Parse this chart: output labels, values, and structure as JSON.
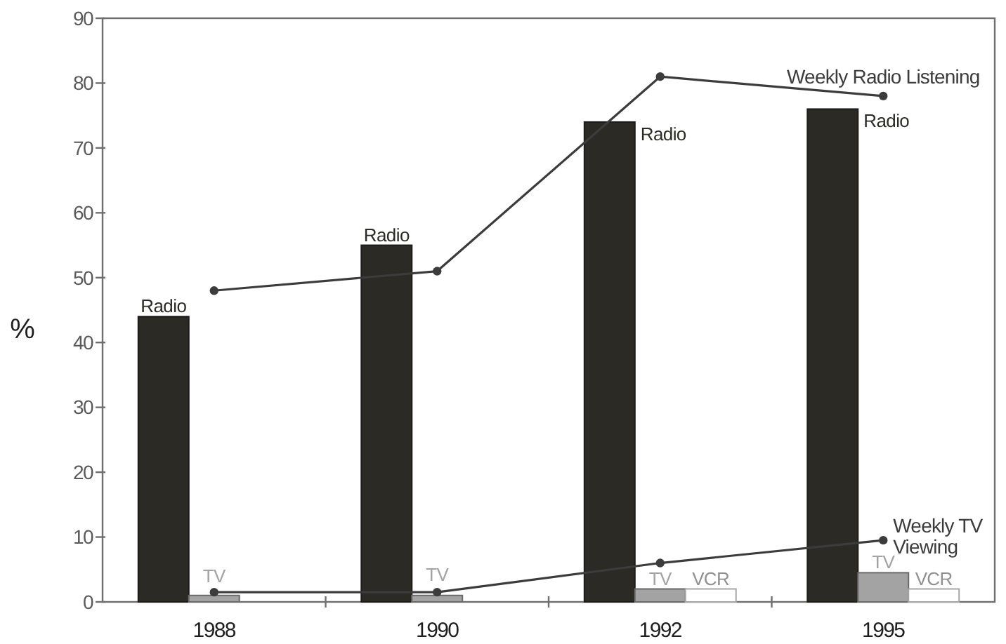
{
  "chart_data": {
    "type": "bar",
    "ylabel": "%",
    "categories": [
      "1988",
      "1990",
      "1992",
      "1995"
    ],
    "series": [
      {
        "name": "Radio",
        "color": "#2b2a25",
        "values": [
          44,
          55,
          74,
          76
        ]
      },
      {
        "name": "TV",
        "color": "#a3a3a3",
        "values": [
          1,
          1,
          2,
          4.5
        ]
      },
      {
        "name": "VCR",
        "color": "#ffffff",
        "values": [
          null,
          null,
          2,
          2
        ]
      },
      {
        "name": "Weekly Radio Listening",
        "type": "line",
        "color": "#3c3c3c",
        "values": [
          48,
          51,
          81,
          78
        ]
      },
      {
        "name": "Weekly TV Viewing",
        "type": "line",
        "color": "#3c3c3c",
        "values": [
          1.5,
          1.5,
          6,
          9.5
        ]
      }
    ],
    "ylim": [
      0,
      90
    ],
    "yticks": [
      0,
      10,
      20,
      30,
      40,
      50,
      60,
      70,
      80,
      90
    ],
    "marker": "circle",
    "line_style": "solid"
  }
}
